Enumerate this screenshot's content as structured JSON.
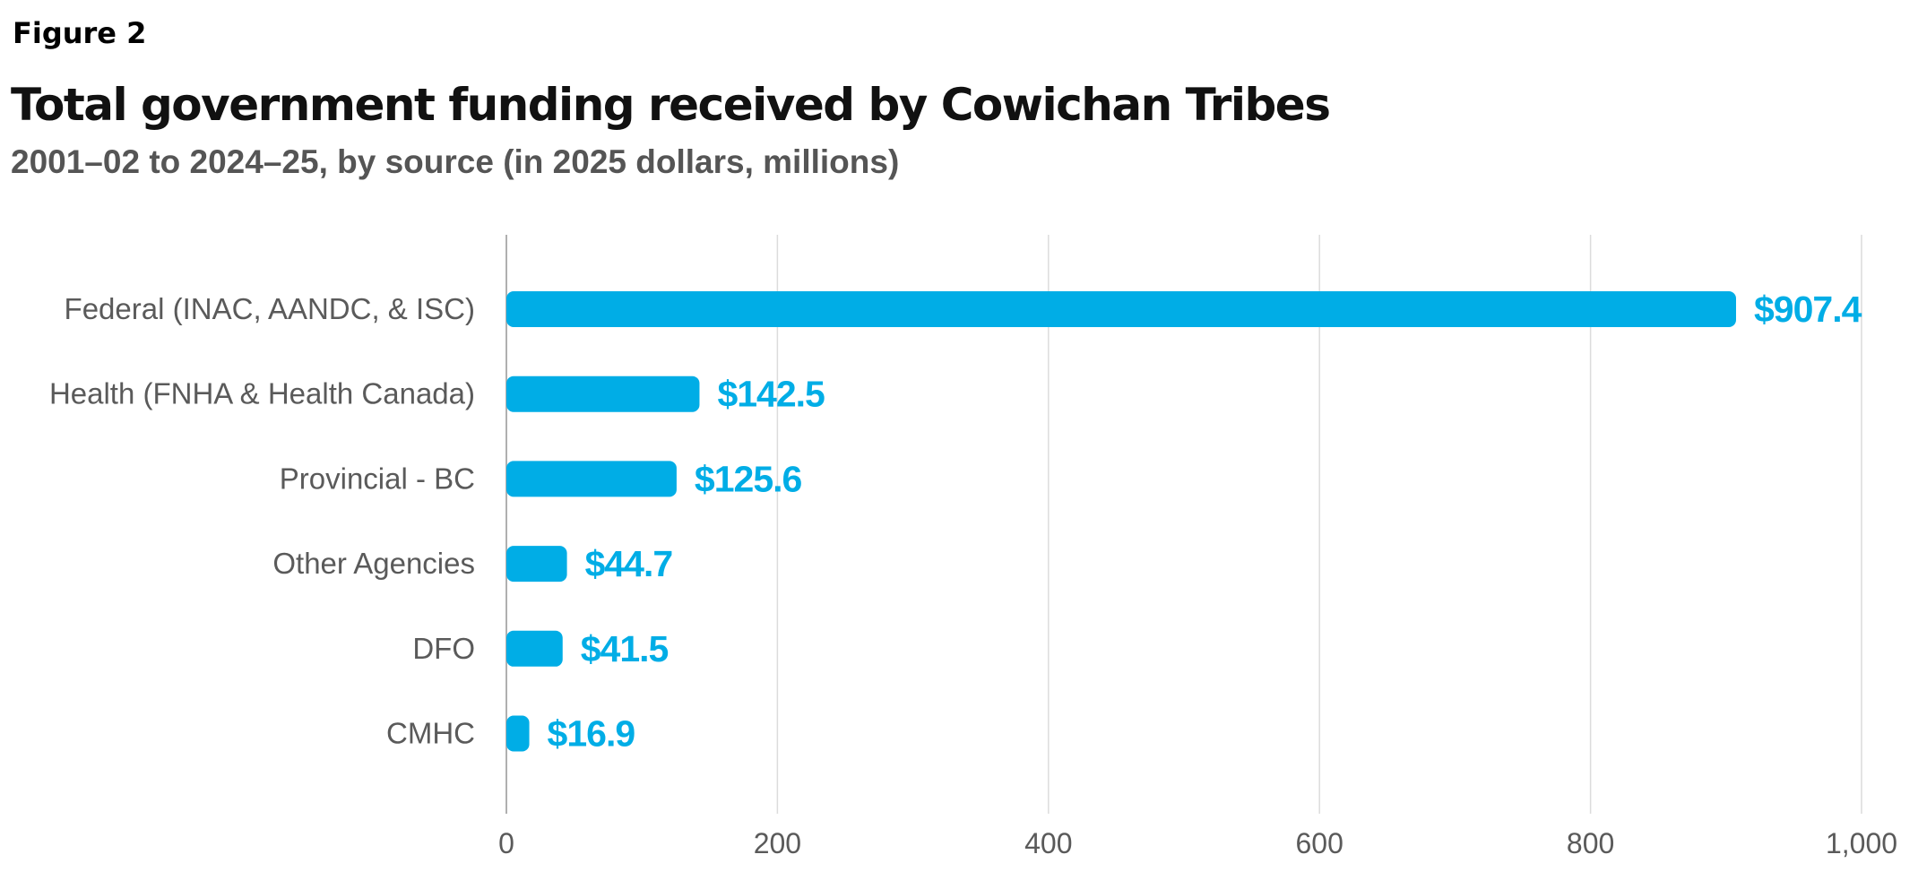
{
  "figure_label": "Figure 2",
  "chart_data": {
    "type": "bar",
    "orientation": "horizontal",
    "title": "Total government funding received by Cowichan Tribes",
    "subtitle": "2001–02 to 2024–25, by source (in 2025 dollars, millions)",
    "categories": [
      "Federal (INAC, AANDC, & ISC)",
      "Health (FNHA & Health Canada)",
      "Provincial - BC",
      "Other Agencies",
      "DFO",
      "CMHC"
    ],
    "values": [
      907.4,
      142.5,
      125.6,
      44.7,
      41.5,
      16.9
    ],
    "data_labels": [
      "$907.4",
      "$142.5",
      "$125.6",
      "$44.7",
      "$41.5",
      "$16.9"
    ],
    "xlim": [
      0,
      1000
    ],
    "xticks": [
      0,
      200,
      400,
      600,
      800,
      1000
    ],
    "xtick_labels": [
      "0",
      "200",
      "400",
      "600",
      "800",
      "1,000"
    ],
    "xlabel": "",
    "ylabel": "",
    "grid": "vertical",
    "legend": "none",
    "bar_color": "#00ADE6",
    "label_color": "#00ADE6"
  }
}
